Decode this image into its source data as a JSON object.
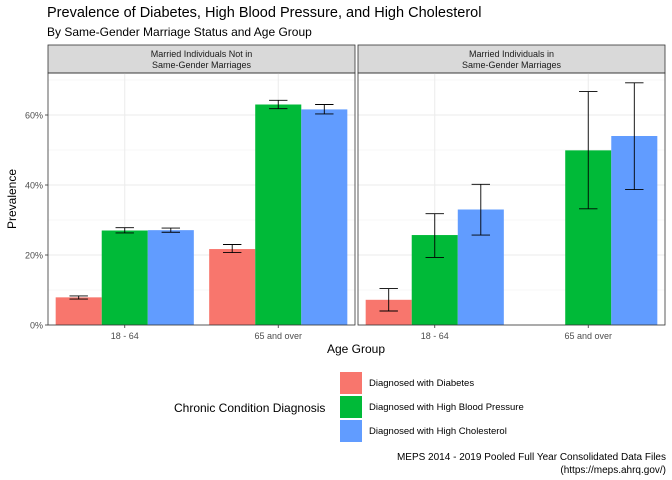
{
  "chart_data": {
    "type": "bar",
    "title": "Prevalence of Diabetes, High Blood Pressure, and High Cholesterol",
    "subtitle": "By Same-Gender Marriage Status and Age Group",
    "xlabel": "Age Group",
    "ylabel": "Prevalence",
    "ylim": [
      0,
      0.72
    ],
    "yticks": [
      0,
      0.2,
      0.4,
      0.6
    ],
    "ytick_labels": [
      "0%",
      "20%",
      "40%",
      "60%"
    ],
    "categories": [
      "18 - 64",
      "65 and over"
    ],
    "legend_title": "Chronic Condition Diagnosis",
    "legend_position": "bottom",
    "grid": true,
    "caption": [
      "MEPS 2014 - 2019 Pooled Full Year Consolidated Data Files",
      "(https://meps.ahrq.gov/)"
    ],
    "series": [
      {
        "name": "Diagnosed with Diabetes",
        "color": "#F8766D"
      },
      {
        "name": "Diagnosed with High Blood Pressure",
        "color": "#00BA38"
      },
      {
        "name": "Diagnosed with High Cholesterol",
        "color": "#619CFF"
      }
    ],
    "panels": [
      {
        "label_line1": "Married Individuals Not in",
        "label_line2": "Same-Gender Marriages",
        "groups": [
          {
            "category": "18 - 64",
            "bars": [
              {
                "series": "Diagnosed with Diabetes",
                "value": 0.079,
                "lo": 0.074,
                "hi": 0.083
              },
              {
                "series": "Diagnosed with High Blood Pressure",
                "value": 0.27,
                "lo": 0.263,
                "hi": 0.278
              },
              {
                "series": "Diagnosed with High Cholesterol",
                "value": 0.271,
                "lo": 0.265,
                "hi": 0.277
              }
            ]
          },
          {
            "category": "65 and over",
            "bars": [
              {
                "series": "Diagnosed with Diabetes",
                "value": 0.217,
                "lo": 0.207,
                "hi": 0.23
              },
              {
                "series": "Diagnosed with High Blood Pressure",
                "value": 0.63,
                "lo": 0.618,
                "hi": 0.642
              },
              {
                "series": "Diagnosed with High Cholesterol",
                "value": 0.616,
                "lo": 0.603,
                "hi": 0.63
              }
            ]
          }
        ]
      },
      {
        "label_line1": "Married Individuals in",
        "label_line2": "Same-Gender Marriages",
        "groups": [
          {
            "category": "18 - 64",
            "bars": [
              {
                "series": "Diagnosed with Diabetes",
                "value": 0.072,
                "lo": 0.04,
                "hi": 0.104
              },
              {
                "series": "Diagnosed with High Blood Pressure",
                "value": 0.257,
                "lo": 0.193,
                "hi": 0.318
              },
              {
                "series": "Diagnosed with High Cholesterol",
                "value": 0.33,
                "lo": 0.257,
                "hi": 0.402
              }
            ]
          },
          {
            "category": "65 and over",
            "bars": [
              {
                "series": "Diagnosed with Diabetes",
                "value": null,
                "lo": null,
                "hi": null
              },
              {
                "series": "Diagnosed with High Blood Pressure",
                "value": 0.499,
                "lo": 0.332,
                "hi": 0.667
              },
              {
                "series": "Diagnosed with High Cholesterol",
                "value": 0.54,
                "lo": 0.387,
                "hi": 0.692
              }
            ]
          }
        ]
      }
    ]
  }
}
